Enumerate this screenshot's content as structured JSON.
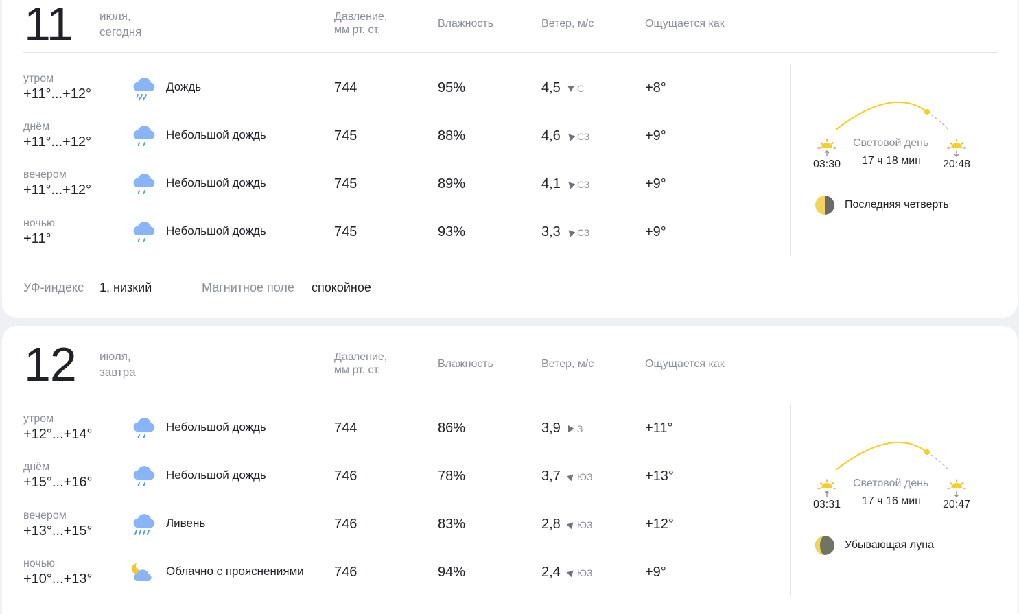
{
  "days": [
    {
      "day": "11",
      "month": "июля,",
      "rel": "сегодня",
      "headers": {
        "pressure_1": "Давление,",
        "pressure_2": "мм рт. ст.",
        "humidity": "Влажность",
        "wind": "Ветер, м/с",
        "feels": "Ощущается как"
      },
      "rows": [
        {
          "part": "утром",
          "temp": "+11°...+12°",
          "icon": "rain-cloud-icon",
          "cond": "Дождь",
          "pressure": "744",
          "humidity": "95%",
          "wind": "4,5",
          "wind_dir": "С",
          "feels": "+8°"
        },
        {
          "part": "днём",
          "temp": "+11°...+12°",
          "icon": "light-rain-cloud-icon",
          "cond": "Небольшой дождь",
          "pressure": "745",
          "humidity": "88%",
          "wind": "4,6",
          "wind_dir": "СЗ",
          "feels": "+9°"
        },
        {
          "part": "вечером",
          "temp": "+11°...+12°",
          "icon": "light-rain-cloud-icon",
          "cond": "Небольшой дождь",
          "pressure": "745",
          "humidity": "89%",
          "wind": "4,1",
          "wind_dir": "СЗ",
          "feels": "+9°"
        },
        {
          "part": "ночью",
          "temp": "+11°",
          "icon": "light-rain-cloud-icon",
          "cond": "Небольшой дождь",
          "pressure": "745",
          "humidity": "93%",
          "wind": "3,3",
          "wind_dir": "СЗ",
          "feels": "+9°"
        }
      ],
      "sun": {
        "label": "Световой день",
        "duration": "17 ч 18 мин",
        "sunrise": "03:30",
        "sunset": "20:48"
      },
      "moon": {
        "phase": "Последняя четверть"
      },
      "extra": {
        "uv_label": "УФ-индекс",
        "uv_value": "1, низкий",
        "mag_label": "Магнитное поле",
        "mag_value": "спокойное"
      }
    },
    {
      "day": "12",
      "month": "июля,",
      "rel": "завтра",
      "headers": {
        "pressure_1": "Давление,",
        "pressure_2": "мм рт. ст.",
        "humidity": "Влажность",
        "wind": "Ветер, м/с",
        "feels": "Ощущается как"
      },
      "rows": [
        {
          "part": "утром",
          "temp": "+12°...+14°",
          "icon": "light-rain-cloud-icon",
          "cond": "Небольшой дождь",
          "pressure": "744",
          "humidity": "86%",
          "wind": "3,9",
          "wind_dir": "З",
          "feels": "+11°"
        },
        {
          "part": "днём",
          "temp": "+15°...+16°",
          "icon": "light-rain-cloud-icon",
          "cond": "Небольшой дождь",
          "pressure": "746",
          "humidity": "78%",
          "wind": "3,7",
          "wind_dir": "ЮЗ",
          "feels": "+13°"
        },
        {
          "part": "вечером",
          "temp": "+13°...+15°",
          "icon": "heavy-rain-cloud-icon",
          "cond": "Ливень",
          "pressure": "746",
          "humidity": "83%",
          "wind": "2,8",
          "wind_dir": "ЮЗ",
          "feels": "+12°"
        },
        {
          "part": "ночью",
          "temp": "+10°...+13°",
          "icon": "night-cloud-moon-icon",
          "cond": "Облачно с прояснениями",
          "pressure": "746",
          "humidity": "94%",
          "wind": "2,4",
          "wind_dir": "ЮЗ",
          "feels": "+9°"
        }
      ],
      "sun": {
        "label": "Световой день",
        "duration": "17 ч 16 мин",
        "sunrise": "03:31",
        "sunset": "20:47"
      },
      "moon": {
        "phase": "Убывающая луна"
      }
    }
  ],
  "colors": {
    "rain_cloud": "#8ab4f8",
    "rain_drop": "#4f9ef0",
    "sun_arc": "#f8cf1f",
    "moon_light": "#f2d35e",
    "moon_dark": "#6f7560"
  }
}
